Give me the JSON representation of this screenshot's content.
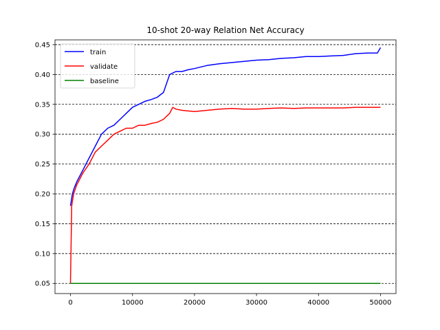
{
  "chart_data": {
    "type": "line",
    "title": "10-shot 20-way Relation Net Accuracy",
    "xlabel": "",
    "ylabel": "",
    "xlim": [
      -2500,
      52500
    ],
    "ylim": [
      0.033,
      0.458
    ],
    "xticks": [
      0,
      10000,
      20000,
      30000,
      40000,
      50000
    ],
    "xtick_labels": [
      "0",
      "10000",
      "20000",
      "30000",
      "40000",
      "50000"
    ],
    "yticks": [
      0.05,
      0.1,
      0.15,
      0.2,
      0.25,
      0.3,
      0.35,
      0.4,
      0.45
    ],
    "ytick_labels": [
      "0.05",
      "0.10",
      "0.15",
      "0.20",
      "0.25",
      "0.30",
      "0.35",
      "0.40",
      "0.45"
    ],
    "grid": "horizontal dashed",
    "legend_position": "upper-left",
    "colors": {
      "train": "#0000ff",
      "validate": "#ff0000",
      "baseline": "#008000"
    },
    "series": [
      {
        "name": "train",
        "x": [
          0,
          300,
          600,
          1000,
          1500,
          2000,
          2500,
          3000,
          3500,
          4000,
          4500,
          5000,
          6000,
          7000,
          8000,
          9000,
          10000,
          11000,
          12000,
          13000,
          14000,
          15000,
          15500,
          16000,
          17000,
          18000,
          19000,
          20000,
          22000,
          24000,
          26000,
          28000,
          30000,
          32000,
          34000,
          36000,
          38000,
          40000,
          42000,
          44000,
          46000,
          48000,
          49500,
          50000
        ],
        "y": [
          0.18,
          0.2,
          0.21,
          0.22,
          0.23,
          0.24,
          0.25,
          0.26,
          0.27,
          0.28,
          0.29,
          0.3,
          0.31,
          0.315,
          0.325,
          0.335,
          0.345,
          0.35,
          0.355,
          0.358,
          0.362,
          0.37,
          0.385,
          0.4,
          0.405,
          0.405,
          0.408,
          0.41,
          0.415,
          0.418,
          0.42,
          0.422,
          0.424,
          0.425,
          0.427,
          0.428,
          0.43,
          0.43,
          0.431,
          0.432,
          0.435,
          0.436,
          0.436,
          0.445
        ]
      },
      {
        "name": "validate",
        "x": [
          0,
          200,
          500,
          1000,
          1500,
          2000,
          3000,
          4000,
          5000,
          6000,
          7000,
          8000,
          9000,
          10000,
          11000,
          12000,
          13000,
          14000,
          15000,
          16000,
          16500,
          17000,
          18000,
          20000,
          22000,
          24000,
          26000,
          28000,
          30000,
          32000,
          34000,
          36000,
          38000,
          40000,
          42000,
          44000,
          46000,
          48000,
          50000
        ],
        "y": [
          0.05,
          0.18,
          0.2,
          0.215,
          0.225,
          0.235,
          0.25,
          0.27,
          0.28,
          0.29,
          0.3,
          0.305,
          0.31,
          0.31,
          0.315,
          0.315,
          0.318,
          0.32,
          0.325,
          0.335,
          0.345,
          0.342,
          0.34,
          0.338,
          0.34,
          0.342,
          0.343,
          0.342,
          0.342,
          0.343,
          0.344,
          0.343,
          0.344,
          0.344,
          0.344,
          0.344,
          0.345,
          0.345,
          0.345
        ]
      },
      {
        "name": "baseline",
        "x": [
          0,
          50000
        ],
        "y": [
          0.05,
          0.05
        ]
      }
    ]
  }
}
